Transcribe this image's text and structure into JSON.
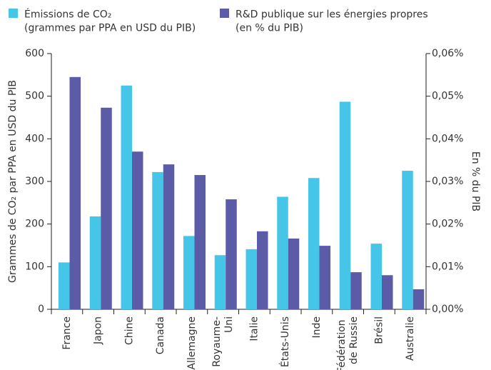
{
  "chart_data": {
    "type": "bar",
    "y_label": "Grammes de CO₂ par PPA en USD du PIB",
    "y2_label": "En % du PIB",
    "categories": [
      "France",
      "Japon",
      "Chine",
      "Canada",
      "Allemagne",
      "Royaume-Uni",
      "Italie",
      "États-Unis",
      "Inde",
      "Fédération de Russie",
      "Brésil",
      "Australie"
    ],
    "series": [
      {
        "name": "Émissions de CO₂ (grammes par PPA en USD du PIB)",
        "color": "#45c6e8",
        "values": [
          110,
          218,
          525,
          322,
          172,
          127,
          141,
          264,
          308,
          487,
          154,
          325
        ]
      },
      {
        "name": "R&D publique sur les énergies propres (en % du PIB)",
        "color": "#5b5ba8",
        "axis": "y2",
        "values": [
          0.0545,
          0.0473,
          0.037,
          0.034,
          0.0315,
          0.0258,
          0.0183,
          0.0166,
          0.0149,
          0.0087,
          0.008,
          0.0047
        ]
      }
    ],
    "ylim": [
      0,
      600
    ],
    "yticks": [
      0,
      100,
      200,
      300,
      400,
      500,
      600
    ],
    "y2lim": [
      0,
      0.06
    ],
    "y2ticks": [
      {
        "value": 0,
        "label": "0,00%"
      },
      {
        "value": 0.01,
        "label": "0,01%"
      },
      {
        "value": 0.02,
        "label": "0,02%"
      },
      {
        "value": 0.03,
        "label": "0,03%"
      },
      {
        "value": 0.04,
        "label": "0,04%"
      },
      {
        "value": 0.05,
        "label": "0,05%"
      },
      {
        "value": 0.06,
        "label": "0,06%"
      }
    ],
    "grid": false,
    "legend": "top-left"
  }
}
